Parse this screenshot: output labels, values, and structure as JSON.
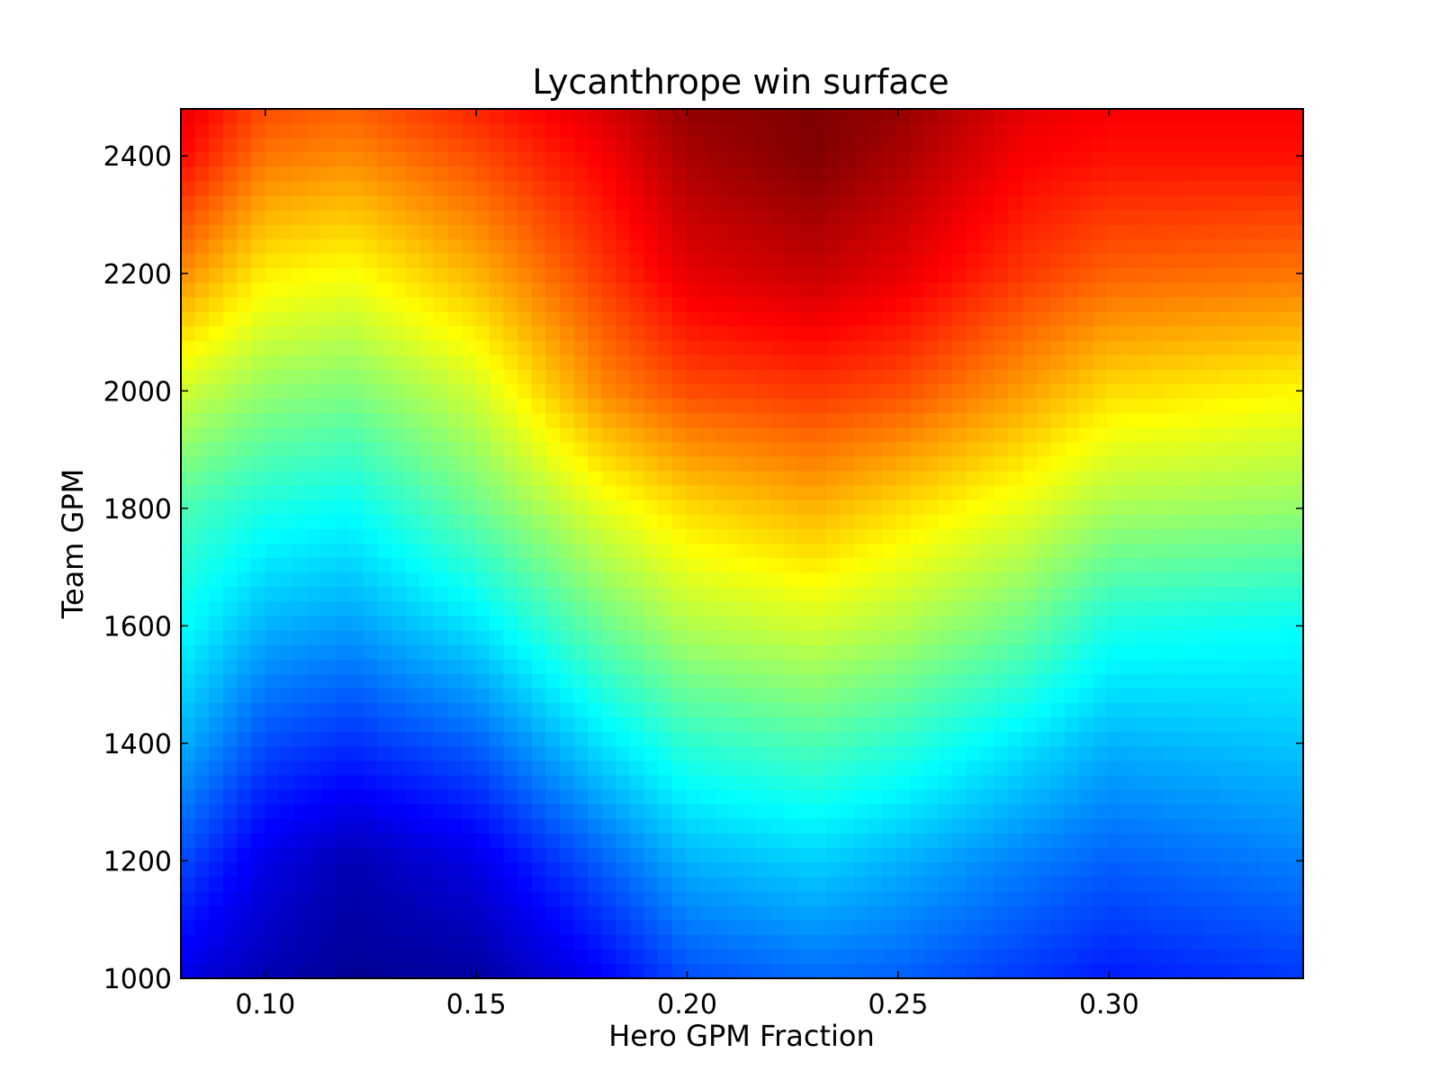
{
  "chart_data": {
    "type": "heatmap",
    "title": "Lycanthrope win surface",
    "xlabel": "Hero GPM Fraction",
    "ylabel": "Team GPM",
    "xlim": [
      0.08,
      0.346
    ],
    "ylim": [
      1000,
      2480
    ],
    "x_ticks": [
      "0.10",
      "0.15",
      "0.20",
      "0.25",
      "0.30"
    ],
    "x_tick_values": [
      0.1,
      0.15,
      0.2,
      0.25,
      0.3
    ],
    "y_ticks": [
      "1000",
      "1200",
      "1400",
      "1600",
      "1800",
      "2000",
      "2200",
      "2400"
    ],
    "y_tick_values": [
      1000,
      1200,
      1400,
      1600,
      1800,
      2000,
      2200,
      2400
    ],
    "colormap": "jet",
    "grid": false,
    "colorbar": false,
    "surface_description": "Win value rises with Team GPM. High (dark red) region peaks near Hero GPM Fraction 0.23 at Team GPM 2400; low (dark blue) region near 0.12 at Team GPM 1000-1250. Ridge of high values dips to about 1800 near fraction 0.23, and the low region extends up to about 1800 near fraction 0.12.",
    "x_grid": [
      0.08,
      0.1,
      0.12,
      0.15,
      0.18,
      0.2,
      0.23,
      0.25,
      0.28,
      0.3,
      0.346
    ],
    "y_grid": [
      1000,
      1200,
      1400,
      1600,
      1800,
      2000,
      2200,
      2400,
      2480
    ],
    "z": [
      [
        0.1,
        0.05,
        0.02,
        0.03,
        0.12,
        0.2,
        0.23,
        0.22,
        0.18,
        0.15,
        0.18
      ],
      [
        0.2,
        0.1,
        0.05,
        0.1,
        0.22,
        0.3,
        0.33,
        0.3,
        0.25,
        0.22,
        0.25
      ],
      [
        0.3,
        0.2,
        0.17,
        0.22,
        0.35,
        0.42,
        0.45,
        0.42,
        0.35,
        0.3,
        0.32
      ],
      [
        0.38,
        0.3,
        0.28,
        0.35,
        0.48,
        0.55,
        0.58,
        0.55,
        0.48,
        0.4,
        0.38
      ],
      [
        0.45,
        0.4,
        0.38,
        0.48,
        0.6,
        0.66,
        0.7,
        0.66,
        0.6,
        0.54,
        0.52
      ],
      [
        0.58,
        0.52,
        0.5,
        0.58,
        0.74,
        0.8,
        0.82,
        0.8,
        0.72,
        0.66,
        0.63
      ],
      [
        0.74,
        0.64,
        0.62,
        0.7,
        0.82,
        0.9,
        0.93,
        0.9,
        0.82,
        0.78,
        0.76
      ],
      [
        0.87,
        0.76,
        0.74,
        0.8,
        0.88,
        0.96,
        1.0,
        0.96,
        0.88,
        0.86,
        0.86
      ],
      [
        0.9,
        0.8,
        0.78,
        0.84,
        0.91,
        0.98,
        1.0,
        0.98,
        0.9,
        0.88,
        0.88
      ]
    ]
  }
}
